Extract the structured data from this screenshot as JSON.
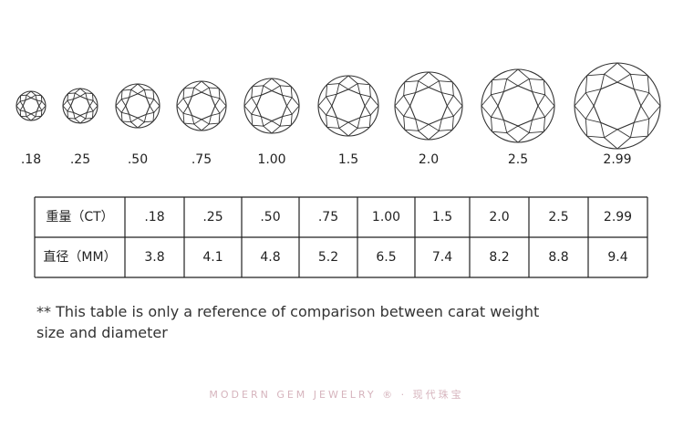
{
  "gems": [
    ".18",
    ".25",
    ".50",
    ".75",
    "1.00",
    "1.5",
    "2.0",
    "2.5",
    "2.99"
  ],
  "table": {
    "rows": [
      [
        "重量（CT）",
        ".18",
        ".25",
        ".50",
        ".75",
        "1.00",
        "1.5",
        "2.0",
        "2.5",
        "2.99"
      ],
      [
        "直径（MM）",
        "3.8",
        "4.1",
        "4.8",
        "5.2",
        "6.5",
        "7.4",
        "8.2",
        "8.8",
        "9.4"
      ]
    ]
  },
  "footnote": "** This table is only a reference of comparison between carat weight  size and diameter",
  "footer": "MODERN GEM JEWELRY ® · 现代珠宝"
}
